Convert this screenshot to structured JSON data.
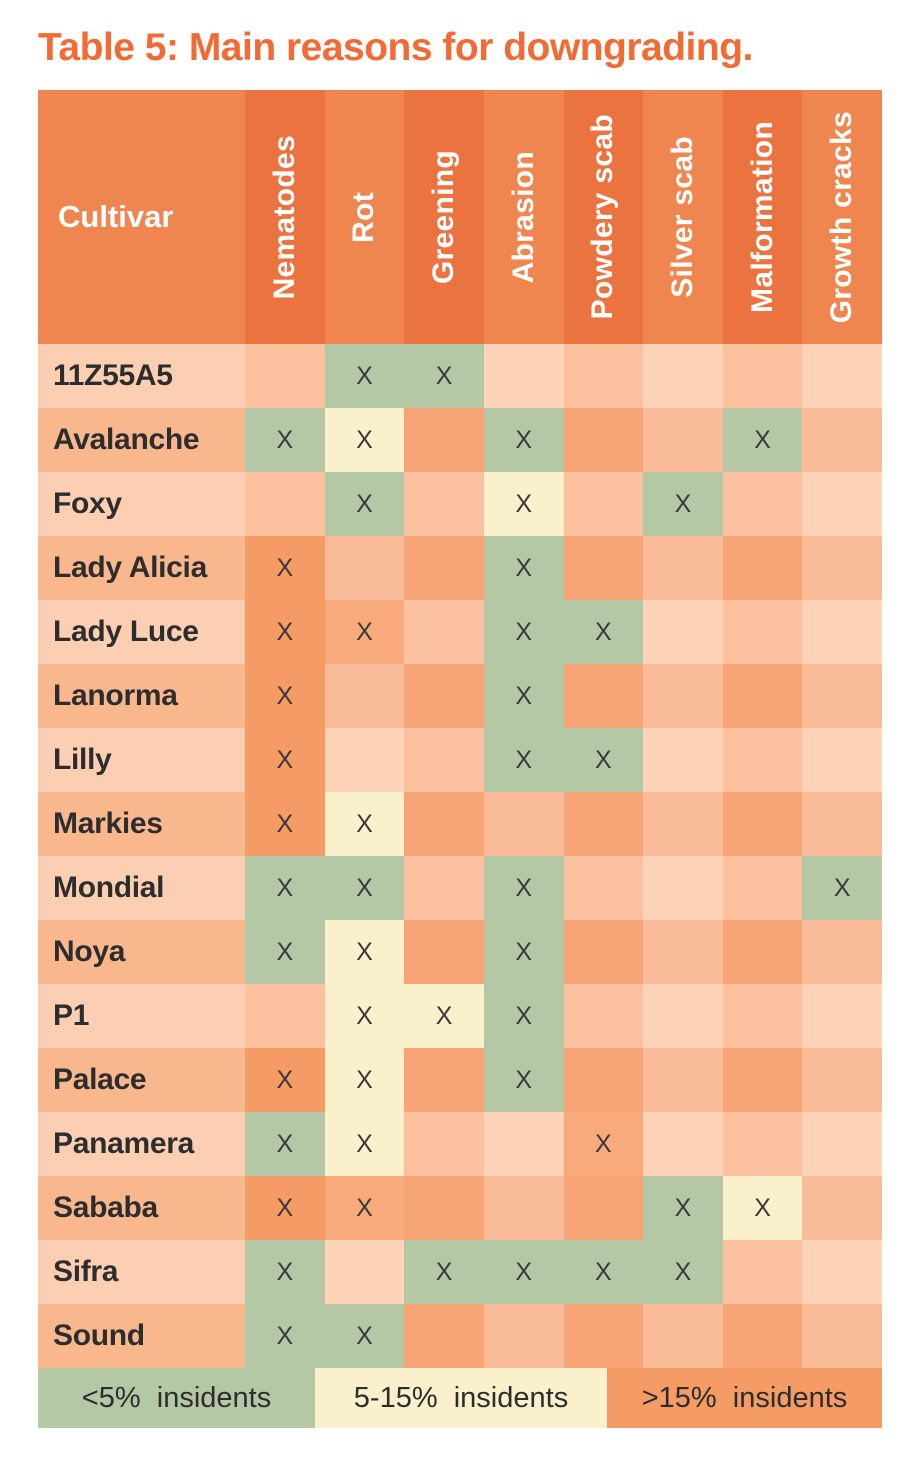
{
  "title": "Table 5: Main reasons for downgrading.",
  "chart_data": {
    "type": "table",
    "title": "Table 5: Main reasons for downgrading.",
    "corner_label": "Cultivar",
    "mark_symbol": "X",
    "columns": [
      {
        "label": "Nematodes",
        "shade": "dark"
      },
      {
        "label": "Rot",
        "shade": "light"
      },
      {
        "label": "Greening",
        "shade": "dark"
      },
      {
        "label": "Abrasion",
        "shade": "light"
      },
      {
        "label": "Powdery scab",
        "shade": "dark"
      },
      {
        "label": "Silver scab",
        "shade": "light"
      },
      {
        "label": "Malformation",
        "shade": "dark"
      },
      {
        "label": "Growth cracks",
        "shade": "light"
      }
    ],
    "rows": [
      {
        "label": "11Z55A5",
        "marks": {
          "Rot": "low",
          "Greening": "low"
        }
      },
      {
        "label": "Avalanche",
        "marks": {
          "Nematodes": "low",
          "Rot": "mid",
          "Abrasion": "low",
          "Malformation": "low"
        }
      },
      {
        "label": "Foxy",
        "marks": {
          "Rot": "low",
          "Abrasion": "mid",
          "Silver scab": "low"
        }
      },
      {
        "label": "Lady Alicia",
        "marks": {
          "Nematodes": "high",
          "Abrasion": "low"
        }
      },
      {
        "label": "Lady Luce",
        "marks": {
          "Nematodes": "high",
          "Rot": "high_soft",
          "Abrasion": "low",
          "Powdery scab": "low"
        }
      },
      {
        "label": "Lanorma",
        "marks": {
          "Nematodes": "high",
          "Abrasion": "low"
        }
      },
      {
        "label": "Lilly",
        "marks": {
          "Nematodes": "high",
          "Abrasion": "low",
          "Powdery scab": "low"
        }
      },
      {
        "label": "Markies",
        "marks": {
          "Nematodes": "high",
          "Rot": "mid"
        }
      },
      {
        "label": "Mondial",
        "marks": {
          "Nematodes": "low",
          "Rot": "low",
          "Abrasion": "low",
          "Growth cracks": "low"
        }
      },
      {
        "label": "Noya",
        "marks": {
          "Nematodes": "low",
          "Rot": "mid",
          "Abrasion": "low"
        }
      },
      {
        "label": "P1",
        "marks": {
          "Rot": "mid",
          "Greening": "mid",
          "Abrasion": "low"
        }
      },
      {
        "label": "Palace",
        "marks": {
          "Nematodes": "high",
          "Rot": "mid",
          "Abrasion": "low"
        }
      },
      {
        "label": "Panamera",
        "marks": {
          "Nematodes": "low",
          "Rot": "mid",
          "Powdery scab": "high_soft"
        }
      },
      {
        "label": "Sababa",
        "marks": {
          "Nematodes": "high",
          "Rot": "high_soft",
          "Silver scab": "low",
          "Malformation": "mid"
        }
      },
      {
        "label": "Sifra",
        "marks": {
          "Nematodes": "low",
          "Greening": "low",
          "Abrasion": "low",
          "Powdery scab": "low",
          "Silver scab": "low"
        }
      },
      {
        "label": "Sound",
        "marks": {
          "Nematodes": "low",
          "Rot": "low"
        }
      }
    ],
    "legend": [
      {
        "label": "<5%  insidents",
        "level": "low"
      },
      {
        "label": "5-15%  insidents",
        "level": "mid"
      },
      {
        "label": ">15%  insidents",
        "level": "high"
      }
    ],
    "levels_meaning": {
      "low": "<5% insidents",
      "mid": "5-15% insidents",
      "high": ">15% insidents",
      "high_soft": ">15% insidents (lighter shade)"
    }
  },
  "colors": {
    "title": "#f26b35",
    "header_dark": "#ea7340",
    "header_light": "#ef8650",
    "header_text": "#ffffff",
    "label_text": "#2d2d2d",
    "mark_text": "#3a3a3a",
    "low": "#b5c8a6",
    "mid": "#faf0cc",
    "high": "#f49b66",
    "high_soft": "#f8aa7c",
    "row_light": {
      "label": "#fccfb2",
      "col_light": "#fdd4b8",
      "col_dark": "#fbc19e"
    },
    "row_dark": {
      "label": "#f9b78e",
      "col_light": "#fabc98",
      "col_dark": "#f7a577"
    }
  }
}
